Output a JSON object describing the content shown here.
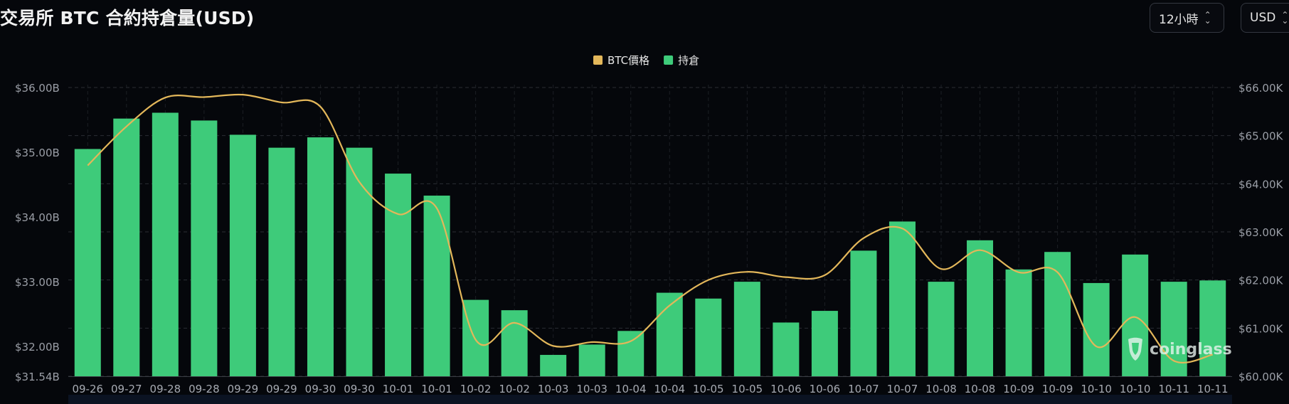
{
  "header": {
    "title": "交易所 BTC 合約持倉量(USD)",
    "interval_select": "12小時",
    "currency_select": "USD"
  },
  "watermark": "coinglass",
  "chart_data": {
    "type": "bar",
    "categories": [
      "09-26",
      "09-27",
      "09-28",
      "09-28",
      "09-29",
      "09-29",
      "09-30",
      "09-30",
      "10-01",
      "10-01",
      "10-02",
      "10-02",
      "10-03",
      "10-03",
      "10-04",
      "10-04",
      "10-05",
      "10-05",
      "10-06",
      "10-06",
      "10-07",
      "10-07",
      "10-08",
      "10-08",
      "10-09",
      "10-09",
      "10-10",
      "10-10",
      "10-11",
      "10-11"
    ],
    "series": [
      {
        "name": "持倉",
        "type": "bar",
        "axis": "left",
        "color": "#3ecb7a",
        "values": [
          35.05,
          35.52,
          35.61,
          35.49,
          35.27,
          35.07,
          35.23,
          35.07,
          34.67,
          34.33,
          32.72,
          32.56,
          31.87,
          32.03,
          32.24,
          32.83,
          32.74,
          33.0,
          32.37,
          32.55,
          33.48,
          33.93,
          33.0,
          33.64,
          33.19,
          33.46,
          32.98,
          33.42,
          33.0,
          33.02
        ]
      },
      {
        "name": "BTC價格",
        "type": "line",
        "axis": "right",
        "color": "#e3b75a",
        "values": [
          64.38,
          65.19,
          65.79,
          65.8,
          65.85,
          65.69,
          65.6,
          64.04,
          63.37,
          63.49,
          60.76,
          61.11,
          60.63,
          60.71,
          60.73,
          61.47,
          62.0,
          62.17,
          62.06,
          62.1,
          62.87,
          63.07,
          62.23,
          62.62,
          62.16,
          62.16,
          60.62,
          61.23,
          60.32,
          60.45
        ]
      }
    ],
    "y_left": {
      "ticks": [
        31.54,
        32.0,
        33.0,
        34.0,
        35.0,
        36.0
      ],
      "tick_labels": [
        "$31.54B",
        "$32.00B",
        "$33.00B",
        "$34.00B",
        "$35.00B",
        "$36.00B"
      ],
      "min": 31.54,
      "max": 36.0
    },
    "y_right": {
      "ticks": [
        60,
        61,
        62,
        63,
        64,
        65,
        66
      ],
      "tick_labels": [
        "$60.00K",
        "$61.00K",
        "$62.00K",
        "$63.00K",
        "$64.00K",
        "$65.00K",
        "$66.00K"
      ],
      "min": 60,
      "max": 66
    },
    "legend": {
      "position": "top-center",
      "items": [
        {
          "label": "BTC價格",
          "color": "#e3b75a"
        },
        {
          "label": "持倉",
          "color": "#3ecb7a"
        }
      ]
    },
    "grid": true
  }
}
